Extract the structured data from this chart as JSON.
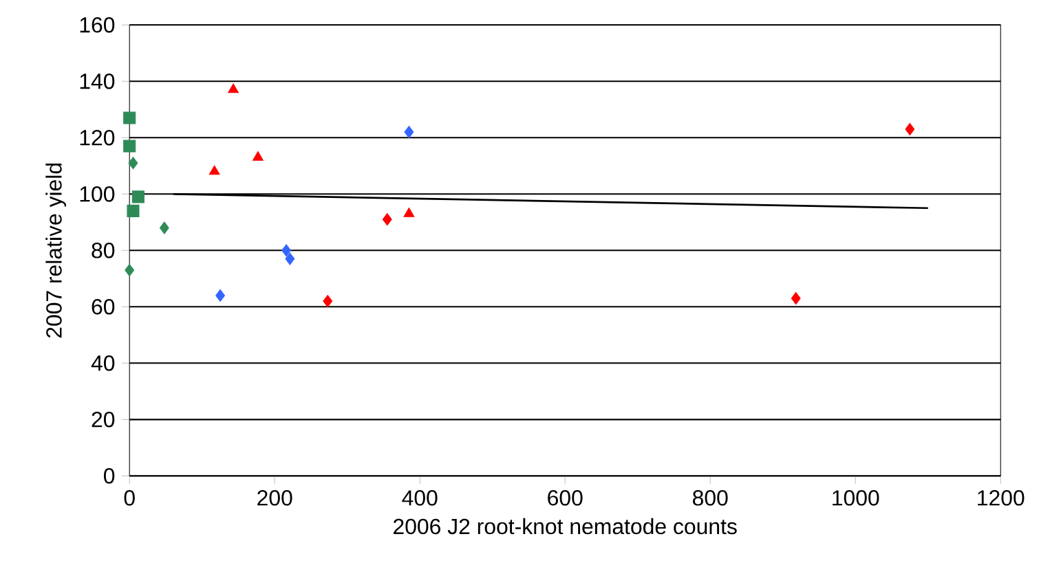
{
  "chart_data": {
    "type": "scatter",
    "xlabel": "2006 J2 root-knot nematode counts",
    "ylabel": "2007 relative yield",
    "xlim": [
      0,
      1200
    ],
    "ylim": [
      0,
      160
    ],
    "xticks": [
      0,
      200,
      400,
      600,
      800,
      1000,
      1200
    ],
    "yticks": [
      0,
      20,
      40,
      60,
      80,
      100,
      120,
      140,
      160
    ],
    "grid": "y",
    "series": [
      {
        "color": "#2e8b57",
        "marker": "square",
        "x": [
          0,
          0,
          12,
          5
        ],
        "values": [
          127,
          117,
          99,
          94
        ]
      },
      {
        "color": "#2e8b57",
        "marker": "diamond",
        "x": [
          5,
          48,
          0
        ],
        "values": [
          111,
          88,
          73
        ]
      },
      {
        "color": "#ff0000",
        "marker": "triangle",
        "x": [
          117,
          143,
          177,
          385
        ],
        "values": [
          108,
          137,
          113,
          93
        ]
      },
      {
        "color": "#ff0000",
        "marker": "diamond",
        "x": [
          273,
          355,
          918,
          1075
        ],
        "values": [
          62,
          91,
          63,
          123
        ]
      },
      {
        "color": "#3366ff",
        "marker": "diamond",
        "x": [
          125,
          216,
          221,
          385
        ],
        "values": [
          64,
          80,
          77,
          122
        ]
      },
      {
        "type": "line",
        "color": "#000000",
        "marker": "none",
        "line_style": "solid",
        "x": [
          60,
          1100
        ],
        "values": [
          100,
          95
        ]
      }
    ]
  }
}
